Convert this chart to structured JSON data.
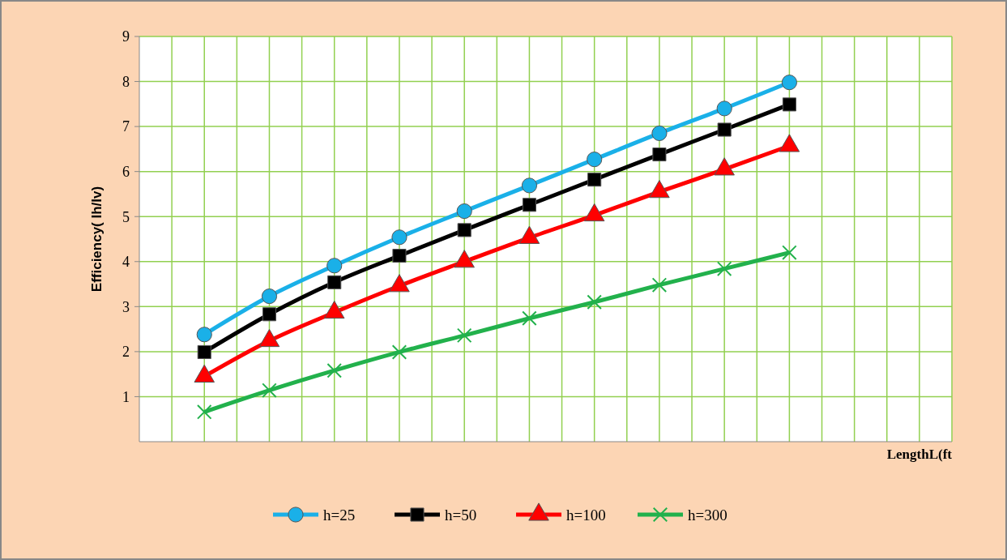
{
  "chart_data": {
    "type": "line",
    "xlabel": "LengthL(ft",
    "ylabel": "Efficiency( Ih/Iv)",
    "categories": [
      null,
      null,
      null,
      null,
      null,
      null,
      null,
      null,
      null,
      null
    ],
    "ylim": [
      0,
      9
    ],
    "yticks": [
      1,
      2,
      3,
      4,
      5,
      6,
      7,
      8,
      9
    ],
    "grid": true,
    "legend": "bottom",
    "line_style": "solid",
    "series": [
      {
        "name": "h=25",
        "color": "#1ab0e8",
        "marker": "circle",
        "values": [
          2.38,
          3.23,
          3.91,
          4.54,
          5.12,
          5.69,
          6.27,
          6.85,
          7.4,
          7.98
        ]
      },
      {
        "name": "h=50",
        "color": "#000000",
        "marker": "square",
        "values": [
          1.99,
          2.83,
          3.54,
          4.13,
          4.7,
          5.26,
          5.82,
          6.38,
          6.93,
          7.49
        ]
      },
      {
        "name": "h=100",
        "color": "#ff0000",
        "marker": "triangle",
        "values": [
          1.45,
          2.24,
          2.87,
          3.46,
          4.0,
          4.53,
          5.03,
          5.55,
          6.05,
          6.57
        ]
      },
      {
        "name": "h=300",
        "color": "#22b14c",
        "marker": "cross",
        "values": [
          0.66,
          1.14,
          1.58,
          1.99,
          2.36,
          2.74,
          3.1,
          3.48,
          3.84,
          4.2
        ]
      }
    ]
  }
}
